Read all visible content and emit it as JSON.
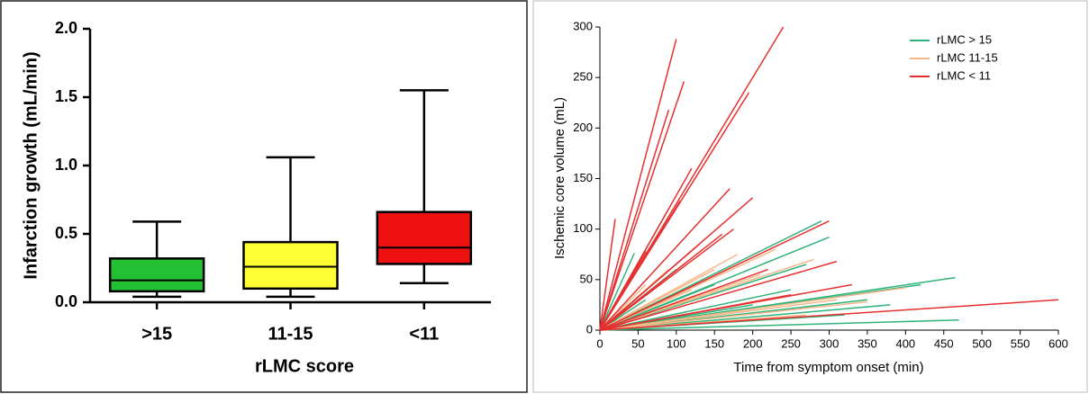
{
  "chart_data": [
    {
      "type": "box",
      "y_label": "Infarction growth (mL/min)",
      "x_label": "rLMC score",
      "categories": [
        ">15",
        "11-15",
        "<11"
      ],
      "colors": [
        "#22c032",
        "#ffff33",
        "#ee1111"
      ],
      "whisker_low": [
        0.04,
        0.04,
        0.14
      ],
      "q1": [
        0.08,
        0.1,
        0.28
      ],
      "median": [
        0.16,
        0.26,
        0.4
      ],
      "q3": [
        0.32,
        0.44,
        0.66
      ],
      "whisker_high": [
        0.59,
        1.06,
        1.55
      ],
      "ylim": [
        0,
        2.0
      ],
      "yticks": [
        {
          "value": 0,
          "label": "0.0"
        },
        0.5,
        {
          "value": 1,
          "label": "1.0"
        },
        1.5,
        {
          "value": 2,
          "label": "2.0"
        }
      ]
    },
    {
      "type": "line",
      "x_label": "Time from symptom onset (min)",
      "y_label": "Ischemic core volume (mL)",
      "legend": "upper right",
      "xlim": [
        0,
        600
      ],
      "ylim": [
        0,
        300
      ],
      "xticks": [
        0,
        50,
        100,
        150,
        200,
        250,
        300,
        350,
        400,
        450,
        500,
        550,
        600
      ],
      "yticks": [
        0,
        50,
        100,
        150,
        200,
        250,
        300
      ],
      "series": [
        {
          "name": "rLMC > 15",
          "color": "#2db37a",
          "x": [
            465,
            470,
            420,
            300,
            90,
            45,
            290,
            320,
            250,
            150,
            200,
            380,
            100,
            270,
            350,
            60
          ],
          "values": [
            52,
            10,
            45,
            92,
            120,
            76,
            108,
            15,
            40,
            45,
            25,
            25,
            60,
            65,
            30,
            30
          ]
        },
        {
          "name": "rLMC 11-15",
          "color": "#f5b88a",
          "x": [
            230,
            210,
            350,
            280,
            150,
            90,
            400,
            180,
            310,
            120,
            270,
            60
          ],
          "values": [
            80,
            55,
            28,
            70,
            60,
            60,
            42,
            75,
            30,
            40,
            15,
            45
          ]
        },
        {
          "name": "rLMC < 11",
          "color": "#e63030",
          "x": [
            100,
            240,
            110,
            195,
            90,
            20,
            170,
            200,
            105,
            120,
            300,
            175,
            310,
            600,
            330,
            250,
            160,
            60,
            220,
            130
          ],
          "values": [
            288,
            300,
            246,
            235,
            218,
            110,
            140,
            131,
            128,
            160,
            108,
            100,
            68,
            30,
            45,
            35,
            95,
            78,
            60,
            85
          ]
        }
      ]
    }
  ]
}
